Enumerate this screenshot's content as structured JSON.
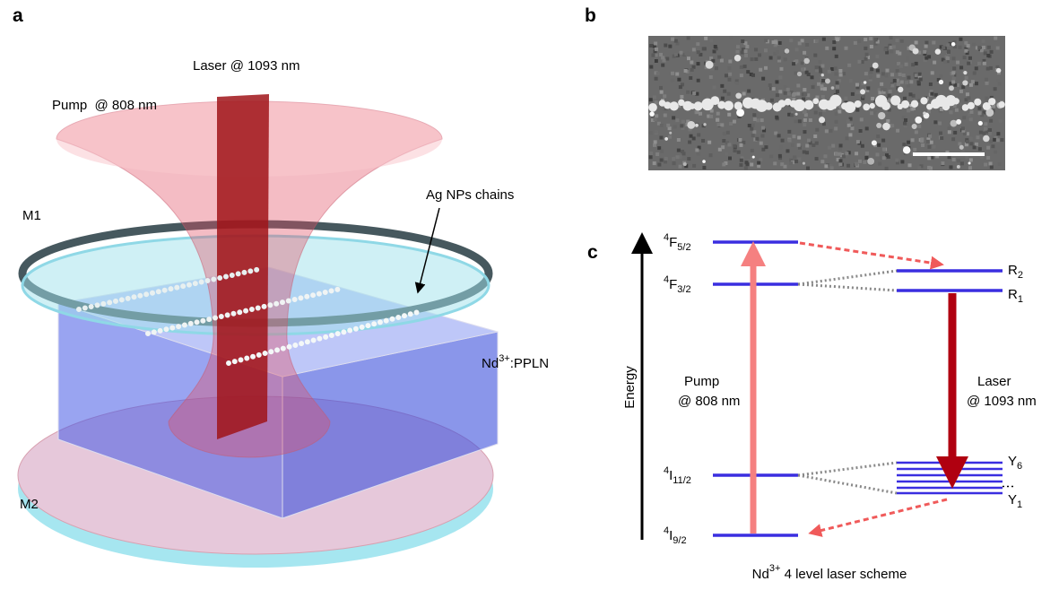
{
  "panels": {
    "a": {
      "label": "a",
      "laser": "Laser @ 1093 nm",
      "pump": "Pump  @ 808 nm",
      "chains": "Ag NPs chains",
      "mirror_top": "M1",
      "mirror_bottom": "M2",
      "crystal": {
        "main": "Nd",
        "sup": "3+",
        "rest": ":PPLN"
      }
    },
    "b": {
      "label": "b"
    },
    "c": {
      "label": "c",
      "axis": "Energy",
      "levels": [
        {
          "sup": "4",
          "main": "F",
          "sub": "5/2"
        },
        {
          "sup": "4",
          "main": "F",
          "sub": "3/2"
        },
        {
          "sup": "4",
          "main": "I",
          "sub": "11/2"
        },
        {
          "sup": "4",
          "main": "I",
          "sub": "9/2"
        }
      ],
      "sublevels": [
        {
          "main": "R",
          "sub": "2"
        },
        {
          "main": "R",
          "sub": "1"
        },
        {
          "main": "Y",
          "sub": "6"
        },
        {
          "main": "Y",
          "sub": "1"
        }
      ],
      "pump": [
        "Pump",
        "@ 808 nm"
      ],
      "laser": [
        "Laser",
        "@ 1093 nm"
      ],
      "caption": {
        "main": "Nd",
        "sup": "3+",
        "rest": " 4 level laser scheme"
      }
    }
  }
}
